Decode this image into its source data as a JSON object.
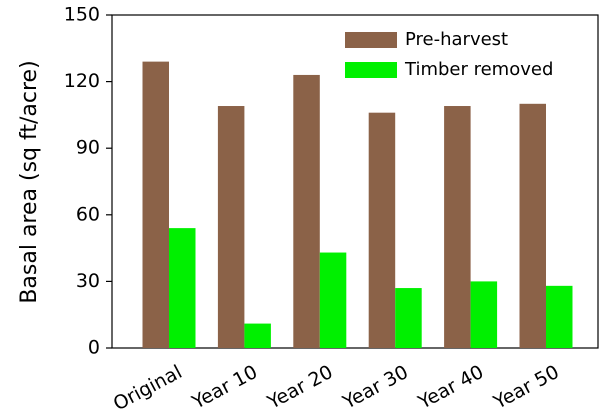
{
  "chart_data": {
    "type": "bar",
    "ylabel": "Basal area (sq ft/acre)",
    "categories": [
      "Original",
      "Year 10",
      "Year 20",
      "Year 30",
      "Year 40",
      "Year 50"
    ],
    "series": [
      {
        "name": "Pre-harvest",
        "color": "#8b6248",
        "values": [
          129,
          109,
          123,
          106,
          109,
          110
        ]
      },
      {
        "name": "Timber removed",
        "color": "#00f000",
        "values": [
          54,
          11,
          43,
          27,
          30,
          28
        ]
      }
    ],
    "ylim": [
      0,
      150
    ],
    "yticks": [
      0,
      30,
      60,
      90,
      120,
      150
    ],
    "legend": "upper right"
  }
}
